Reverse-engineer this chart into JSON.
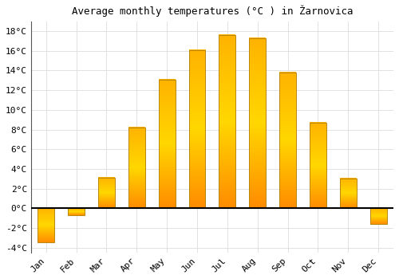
{
  "title": "Average monthly temperatures (°C ) in Žarnovica",
  "months": [
    "Jan",
    "Feb",
    "Mar",
    "Apr",
    "May",
    "Jun",
    "Jul",
    "Aug",
    "Sep",
    "Oct",
    "Nov",
    "Dec"
  ],
  "values": [
    -3.5,
    -0.7,
    3.1,
    8.2,
    13.1,
    16.1,
    17.6,
    17.3,
    13.8,
    8.7,
    3.0,
    -1.6
  ],
  "bar_color_face": "#FFB300",
  "bar_color_edge": "#B8860B",
  "background_color": "#FFFFFF",
  "grid_color": "#DDDDDD",
  "ylim": [
    -4.5,
    19.0
  ],
  "ytick_values": [
    -4,
    -2,
    0,
    2,
    4,
    6,
    8,
    10,
    12,
    14,
    16,
    18
  ],
  "zero_line_color": "#000000",
  "title_fontsize": 9,
  "tick_fontsize": 8,
  "bar_width": 0.55
}
